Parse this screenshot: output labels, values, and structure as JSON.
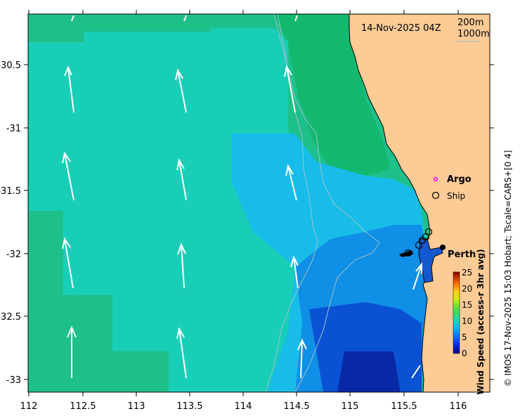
{
  "map": {
    "date_label": "14-Nov-2025 04Z",
    "contour_legend": [
      "200m",
      "1000m"
    ],
    "lon_ticks": [
      "112",
      "112.5",
      "113",
      "113.5",
      "114",
      "114.5",
      "115",
      "115.5",
      "116"
    ],
    "lat_ticks": [
      "-30.5",
      "-31",
      "-31.5",
      "-32",
      "-32.5",
      "-33"
    ],
    "markers": {
      "argo_label": "Argo",
      "ship_label": "Ship",
      "city_label": "Perth"
    },
    "colorbar": {
      "title": "Wind Speed (access-r 3hr avg)",
      "ticks": [
        "0",
        "5",
        "10",
        "15",
        "20",
        "25"
      ],
      "range": [
        0,
        25
      ]
    },
    "credit": "© IMOS 17-Nov-2025 15:03 Hobart; Tscale=CARS+[0 4]",
    "colors": {
      "land": "#fccb96",
      "green": "#1fb86a",
      "teal": "#19cfb5",
      "cyan": "#1ab8f2",
      "blue": "#0e54d9",
      "deep_blue": "#0a2aa8",
      "argo": "#ff00ff"
    }
  }
}
